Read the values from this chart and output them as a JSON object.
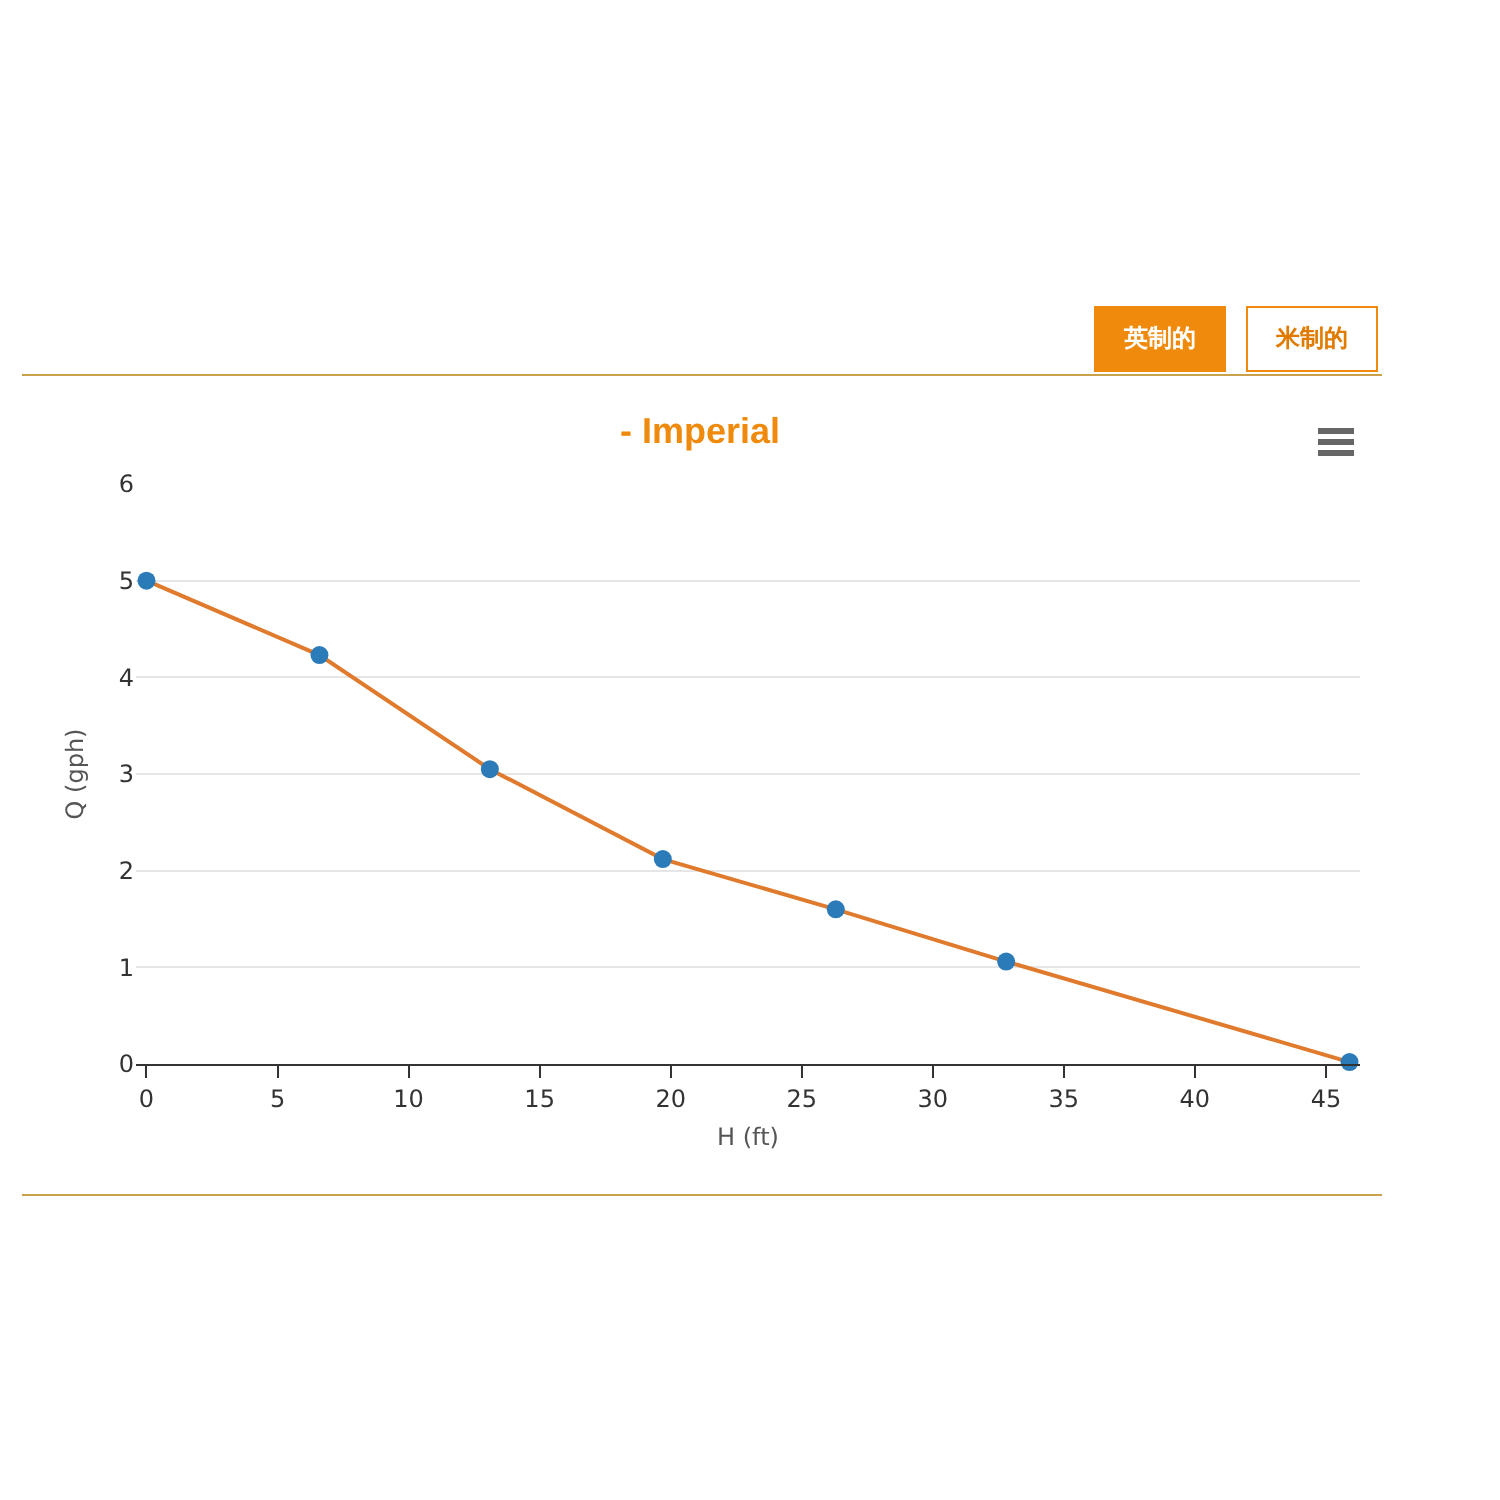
{
  "chart_data": {
    "type": "line",
    "title": "- Imperial",
    "xlabel": "H (ft)",
    "ylabel": "Q (gph)",
    "annotations": [
      "英制的",
      "米制的"
    ],
    "x": [
      0,
      6.6,
      13.1,
      19.7,
      26.3,
      32.8,
      45.9
    ],
    "series": [
      {
        "color": "#e07b2e",
        "colors": [
          "#2b7bb9",
          "#2b7bb9",
          "#2b7bb9",
          "#2b7bb9",
          "#2b7bb9",
          "#2b7bb9",
          "#2b7bb9"
        ],
        "values": [
          5,
          4.23,
          3.05,
          2.12,
          1.6,
          1.06,
          0.02
        ]
      }
    ],
    "xlim": [
      -0.4,
      46.3
    ],
    "xticks": [
      0,
      5,
      10,
      15,
      20,
      25,
      30,
      35,
      40,
      45
    ],
    "ylim": [
      0,
      6
    ],
    "yticks": [
      0,
      1,
      2,
      3,
      4,
      5,
      6
    ],
    "grid": "y",
    "legend": false,
    "marker": "circle",
    "line_style": "solid"
  }
}
